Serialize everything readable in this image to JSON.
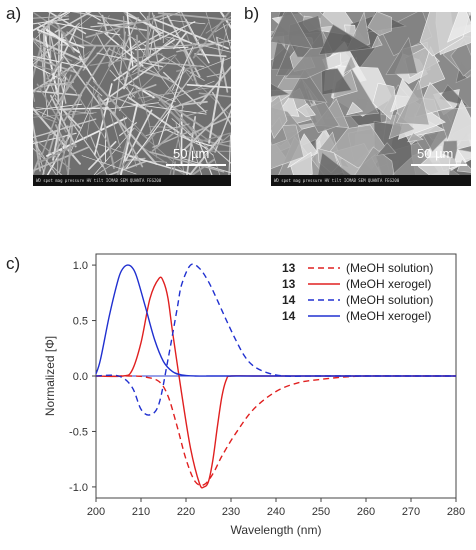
{
  "figure": {
    "panel_a_label": "a)",
    "panel_b_label": "b)",
    "panel_c_label": "c)",
    "micrograph_a": {
      "scale_label": "50 µm",
      "info_bar": "WD  spot  mag  pressure  HV  tilt  ICMAB SEM QUANTA FEG200"
    },
    "micrograph_b": {
      "scale_label": "50 µm",
      "info_bar": "WD  spot  mag  pressure  HV  tilt  ICMAB SEM QUANTA FEG200"
    }
  },
  "chart_data": {
    "type": "line",
    "xlabel": "Wavelength (nm)",
    "ylabel": "Normalized [Φ]",
    "xlim": [
      200,
      280
    ],
    "ylim": [
      -1.1,
      1.1
    ],
    "xticks": [
      200,
      210,
      220,
      230,
      240,
      250,
      260,
      270,
      280
    ],
    "yticks": [
      1.0,
      0.5,
      0.0,
      -0.5,
      -1.0
    ],
    "ytick_labels": [
      "1.0",
      "0.5",
      "0.0",
      "-0.5",
      "-1.0"
    ],
    "legend_position": "top-right",
    "series": [
      {
        "name": "13",
        "label": "(MeOH solution)",
        "color": "#e02020",
        "style": "dashed",
        "x": [
          200,
          208,
          211,
          214,
          216,
          218,
          220,
          222,
          224,
          226,
          228,
          231,
          235,
          240,
          245,
          250,
          255,
          260,
          270,
          280
        ],
        "y": [
          0,
          0,
          -0.01,
          -0.05,
          -0.18,
          -0.45,
          -0.75,
          -0.95,
          -0.98,
          -0.88,
          -0.72,
          -0.52,
          -0.3,
          -0.14,
          -0.06,
          -0.03,
          -0.01,
          0,
          0,
          0
        ]
      },
      {
        "name": "13",
        "label": "(MeOH xerogel)",
        "color": "#e02020",
        "style": "solid",
        "x": [
          200,
          206,
          208,
          210,
          212,
          214,
          215,
          216,
          217,
          219,
          221,
          223,
          224,
          225,
          226,
          227,
          228,
          229,
          230,
          235,
          250,
          280
        ],
        "y": [
          0,
          0,
          0.05,
          0.3,
          0.7,
          0.88,
          0.85,
          0.7,
          0.4,
          -0.15,
          -0.65,
          -0.97,
          -1.0,
          -0.95,
          -0.75,
          -0.45,
          -0.18,
          -0.03,
          0,
          0,
          0,
          0
        ]
      },
      {
        "name": "14",
        "label": "(MeOH solution)",
        "color": "#2030d0",
        "style": "dashed",
        "x": [
          200,
          205,
          208,
          210,
          212,
          214,
          216,
          218,
          219,
          221,
          223,
          225,
          227,
          229,
          231,
          233,
          235,
          238,
          242,
          250,
          280
        ],
        "y": [
          0,
          0,
          -0.1,
          -0.3,
          -0.35,
          -0.25,
          0.15,
          0.6,
          0.82,
          1.0,
          0.97,
          0.85,
          0.68,
          0.5,
          0.33,
          0.18,
          0.09,
          0.03,
          0,
          0,
          0
        ]
      },
      {
        "name": "14",
        "label": "(MeOH xerogel)",
        "color": "#2030d0",
        "style": "solid",
        "x": [
          200,
          201,
          203,
          205,
          206,
          207,
          208,
          209,
          211,
          213,
          215,
          217,
          219,
          222,
          225,
          230,
          280
        ],
        "y": [
          0.02,
          0.15,
          0.55,
          0.88,
          0.97,
          1.0,
          0.98,
          0.9,
          0.62,
          0.33,
          0.13,
          0.04,
          0.01,
          0,
          0,
          0,
          0
        ]
      }
    ]
  }
}
